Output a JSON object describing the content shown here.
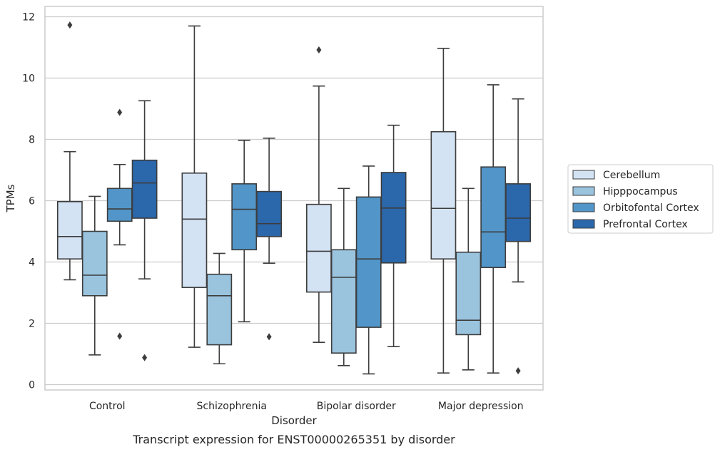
{
  "caption": "Transcript expression for ENST00000265351 by disorder",
  "chart_data": {
    "type": "box",
    "title": "",
    "xlabel": "Disorder",
    "ylabel": "TPMs",
    "ylim": [
      -0.2,
      12.3
    ],
    "yticks": [
      0,
      2,
      4,
      6,
      8,
      10,
      12
    ],
    "grid": "horizontal",
    "legend_position": "right",
    "categories": [
      "Control",
      "Schizophrenia",
      "Bipolar disorder",
      "Major depression"
    ],
    "series": [
      {
        "name": "Cerebellum",
        "color": "#d3e3f3",
        "boxes": [
          {
            "whislo": 3.42,
            "q1": 4.1,
            "med": 4.83,
            "q3": 5.97,
            "whishi": 7.6,
            "fliers": [
              11.73
            ]
          },
          {
            "whislo": 1.22,
            "q1": 3.17,
            "med": 5.4,
            "q3": 6.9,
            "whishi": 11.7,
            "fliers": []
          },
          {
            "whislo": 1.38,
            "q1": 3.02,
            "med": 4.35,
            "q3": 5.88,
            "whishi": 9.74,
            "fliers": [
              10.92
            ]
          },
          {
            "whislo": 0.38,
            "q1": 4.1,
            "med": 5.75,
            "q3": 8.25,
            "whishi": 10.97,
            "fliers": []
          }
        ]
      },
      {
        "name": "Hipppocampus",
        "color": "#9ac3de",
        "boxes": [
          {
            "whislo": 0.97,
            "q1": 2.9,
            "med": 3.57,
            "q3": 5.0,
            "whishi": 6.14,
            "fliers": []
          },
          {
            "whislo": 0.68,
            "q1": 1.3,
            "med": 2.9,
            "q3": 3.6,
            "whishi": 4.28,
            "fliers": []
          },
          {
            "whislo": 0.62,
            "q1": 1.03,
            "med": 3.5,
            "q3": 4.4,
            "whishi": 6.4,
            "fliers": []
          },
          {
            "whislo": 0.48,
            "q1": 1.63,
            "med": 2.1,
            "q3": 4.32,
            "whishi": 6.4,
            "fliers": []
          }
        ]
      },
      {
        "name": "Orbitofontal Cortex",
        "color": "#5296c9",
        "boxes": [
          {
            "whislo": 4.56,
            "q1": 5.33,
            "med": 5.73,
            "q3": 6.4,
            "whishi": 7.18,
            "fliers": [
              8.88,
              1.58
            ]
          },
          {
            "whislo": 2.05,
            "q1": 4.4,
            "med": 5.72,
            "q3": 6.55,
            "whishi": 7.97,
            "fliers": []
          },
          {
            "whislo": 0.35,
            "q1": 1.87,
            "med": 4.1,
            "q3": 6.12,
            "whishi": 7.13,
            "fliers": []
          },
          {
            "whislo": 0.38,
            "q1": 3.82,
            "med": 4.98,
            "q3": 7.1,
            "whishi": 9.78,
            "fliers": []
          }
        ]
      },
      {
        "name": "Prefrontal Cortex",
        "color": "#2b67ab",
        "boxes": [
          {
            "whislo": 3.45,
            "q1": 5.43,
            "med": 6.58,
            "q3": 7.32,
            "whishi": 9.26,
            "fliers": [
              0.88
            ]
          },
          {
            "whislo": 3.96,
            "q1": 4.83,
            "med": 5.25,
            "q3": 6.3,
            "whishi": 8.04,
            "fliers": [
              1.56
            ]
          },
          {
            "whislo": 1.24,
            "q1": 3.97,
            "med": 5.76,
            "q3": 6.92,
            "whishi": 8.46,
            "fliers": []
          },
          {
            "whislo": 3.35,
            "q1": 4.67,
            "med": 5.43,
            "q3": 6.55,
            "whishi": 9.32,
            "fliers": [
              0.45
            ]
          }
        ]
      }
    ]
  }
}
